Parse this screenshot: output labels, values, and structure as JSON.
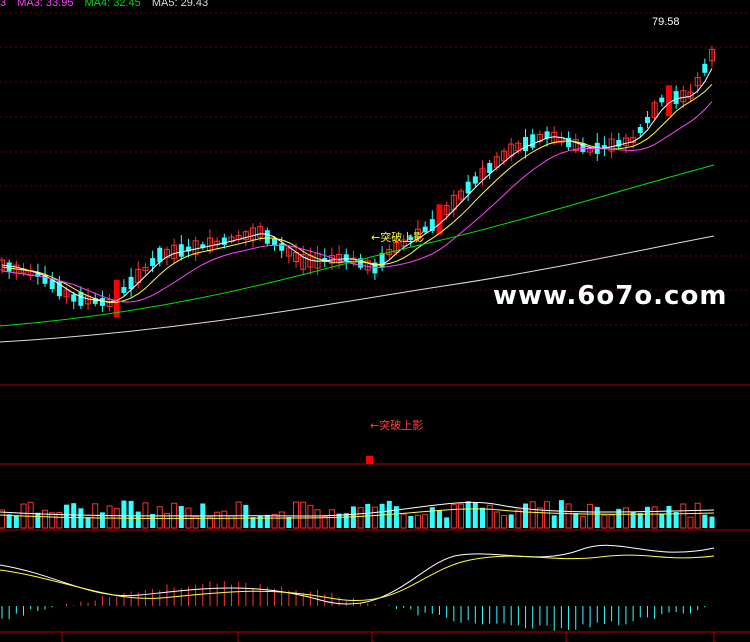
{
  "legend": {
    "prefix": "3",
    "ma3": "MA3: 33.95",
    "ma4": "MA4: 32.45",
    "ma5": "MA5: 29.43",
    "colors": {
      "prefix": "#ff40ff",
      "ma3": "#ff40ff",
      "ma4": "#00e000",
      "ma5": "#dddddd"
    }
  },
  "watermark": "www.6o7o.com",
  "chart_data": {
    "type": "candlestick",
    "price_high_label": "79.58",
    "annotation_main": "←突破上影",
    "annotation_signal": "←突破上影",
    "colors": {
      "up": "#ff3030",
      "down": "#30ffff",
      "strong": "#ff0000",
      "ma1": "#ffffff",
      "ma2": "#ffff40",
      "ma3": "#ff40ff",
      "ma4": "#00e000",
      "ma5": "#dddddd",
      "grid": "#6a0000",
      "axis": "#b00000",
      "vol_avg1": "#ffffff",
      "vol_avg2": "#ffff40"
    }
  }
}
